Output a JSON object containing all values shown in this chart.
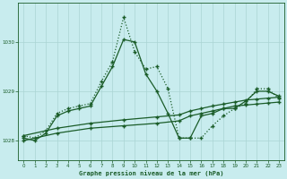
{
  "title": "Graphe pression niveau de la mer (hPa)",
  "background_color": "#c8ecee",
  "line_color": "#1a5c28",
  "grid_color": "#aad4d4",
  "xlim": [
    -0.5,
    23.5
  ],
  "ylim": [
    1027.6,
    1030.8
  ],
  "yticks": [
    1028,
    1029,
    1030
  ],
  "xticks": [
    0,
    1,
    2,
    3,
    4,
    5,
    6,
    7,
    8,
    9,
    10,
    11,
    12,
    13,
    14,
    15,
    16,
    17,
    18,
    19,
    20,
    21,
    22,
    23
  ],
  "series": [
    {
      "x": [
        0,
        1,
        2,
        3,
        4,
        5,
        6,
        7,
        8,
        9,
        10,
        11,
        12,
        13,
        14,
        15,
        16,
        17,
        18,
        19,
        20,
        21,
        22,
        23
      ],
      "y": [
        1028.1,
        1028.05,
        1028.2,
        1028.55,
        1028.65,
        1028.7,
        1028.75,
        1029.2,
        1029.6,
        1030.5,
        1029.8,
        1029.45,
        1029.5,
        1029.05,
        1028.05,
        1028.05,
        1028.05,
        1028.3,
        1028.5,
        1028.65,
        1028.75,
        1029.05,
        1029.05,
        1028.85
      ],
      "style": "dotted"
    },
    {
      "x": [
        0,
        1,
        2,
        3,
        4,
        5,
        6,
        7,
        8,
        9,
        10,
        11,
        12,
        13,
        14,
        15,
        16,
        17,
        18,
        19,
        20,
        21,
        22,
        23
      ],
      "y": [
        1028.05,
        1028.0,
        1028.15,
        1028.5,
        1028.6,
        1028.65,
        1028.7,
        1029.1,
        1029.5,
        1030.05,
        1030.0,
        1029.35,
        1029.0,
        1028.55,
        1028.05,
        1028.05,
        1028.5,
        1028.55,
        1028.65,
        1028.65,
        1028.8,
        1029.0,
        1029.0,
        1028.9
      ],
      "style": "solid"
    },
    {
      "x": [
        0,
        3,
        6,
        9,
        12,
        14,
        15,
        16,
        17,
        18,
        19,
        20,
        21,
        22,
        23
      ],
      "y": [
        1028.0,
        1028.15,
        1028.25,
        1028.3,
        1028.35,
        1028.4,
        1028.5,
        1028.55,
        1028.6,
        1028.65,
        1028.7,
        1028.72,
        1028.74,
        1028.76,
        1028.78
      ],
      "style": "solid"
    },
    {
      "x": [
        0,
        3,
        6,
        9,
        12,
        14,
        15,
        16,
        17,
        18,
        19,
        20,
        21,
        22,
        23
      ],
      "y": [
        1028.1,
        1028.25,
        1028.35,
        1028.42,
        1028.48,
        1028.52,
        1028.6,
        1028.65,
        1028.7,
        1028.74,
        1028.78,
        1028.82,
        1028.84,
        1028.86,
        1028.88
      ],
      "style": "solid"
    }
  ]
}
